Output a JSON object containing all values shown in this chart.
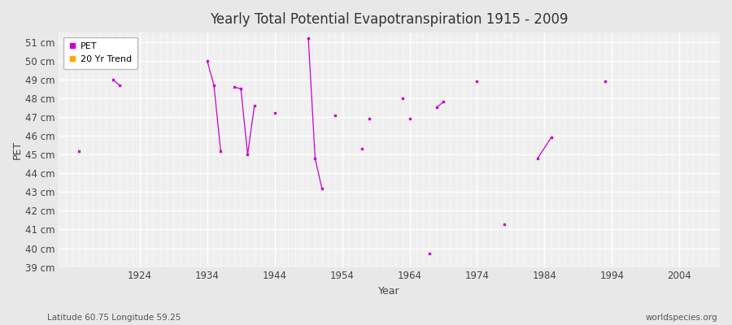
{
  "title": "Yearly Total Potential Evapotranspiration 1915 - 2009",
  "xlabel": "Year",
  "ylabel": "PET",
  "subtitle_left": "Latitude 60.75 Longitude 59.25",
  "subtitle_right": "worldspecies.org",
  "ylim": [
    39,
    51.5
  ],
  "xlim": [
    1912,
    2010
  ],
  "ytick_values": [
    39,
    40,
    41,
    42,
    43,
    44,
    45,
    46,
    47,
    48,
    49,
    50,
    51
  ],
  "ytick_labels": [
    "39 cm",
    "40 cm",
    "41 cm",
    "42 cm",
    "43 cm",
    "44 cm",
    "45 cm",
    "46 cm",
    "47 cm",
    "48 cm",
    "49 cm",
    "50 cm",
    "51 cm"
  ],
  "xtick_values": [
    1924,
    1934,
    1944,
    1954,
    1964,
    1974,
    1984,
    1994,
    2004
  ],
  "pet_color": "#CC00CC",
  "trend_color": "#FFA500",
  "bg_color": "#E8E8E8",
  "plot_bg_color": "#EFEFEF",
  "segments": [
    [
      [
        1920,
        49.0
      ],
      [
        1921,
        48.7
      ]
    ],
    [
      [
        1934,
        50.0
      ],
      [
        1935,
        48.7
      ],
      [
        1936,
        45.2
      ]
    ],
    [
      [
        1938,
        48.6
      ],
      [
        1939,
        48.5
      ],
      [
        1940,
        45.0
      ],
      [
        1941,
        47.6
      ]
    ],
    [
      [
        1944,
        47.2
      ]
    ],
    [
      [
        1949,
        51.2
      ],
      [
        1950,
        44.8
      ],
      [
        1951,
        43.2
      ]
    ],
    [
      [
        1953,
        47.1
      ]
    ],
    [
      [
        1957,
        45.3
      ]
    ],
    [
      [
        1958,
        46.9
      ]
    ],
    [
      [
        1963,
        48.0
      ]
    ],
    [
      [
        1964,
        46.9
      ]
    ],
    [
      [
        1967,
        39.7
      ]
    ],
    [
      [
        1968,
        47.5
      ],
      [
        1969,
        47.8
      ]
    ],
    [
      [
        1974,
        48.9
      ]
    ],
    [
      [
        1978,
        41.3
      ]
    ],
    [
      [
        1983,
        44.8
      ],
      [
        1985,
        45.9
      ]
    ],
    [
      [
        1993,
        48.9
      ]
    ]
  ],
  "isolated_points": [
    [
      1915,
      45.2
    ]
  ]
}
